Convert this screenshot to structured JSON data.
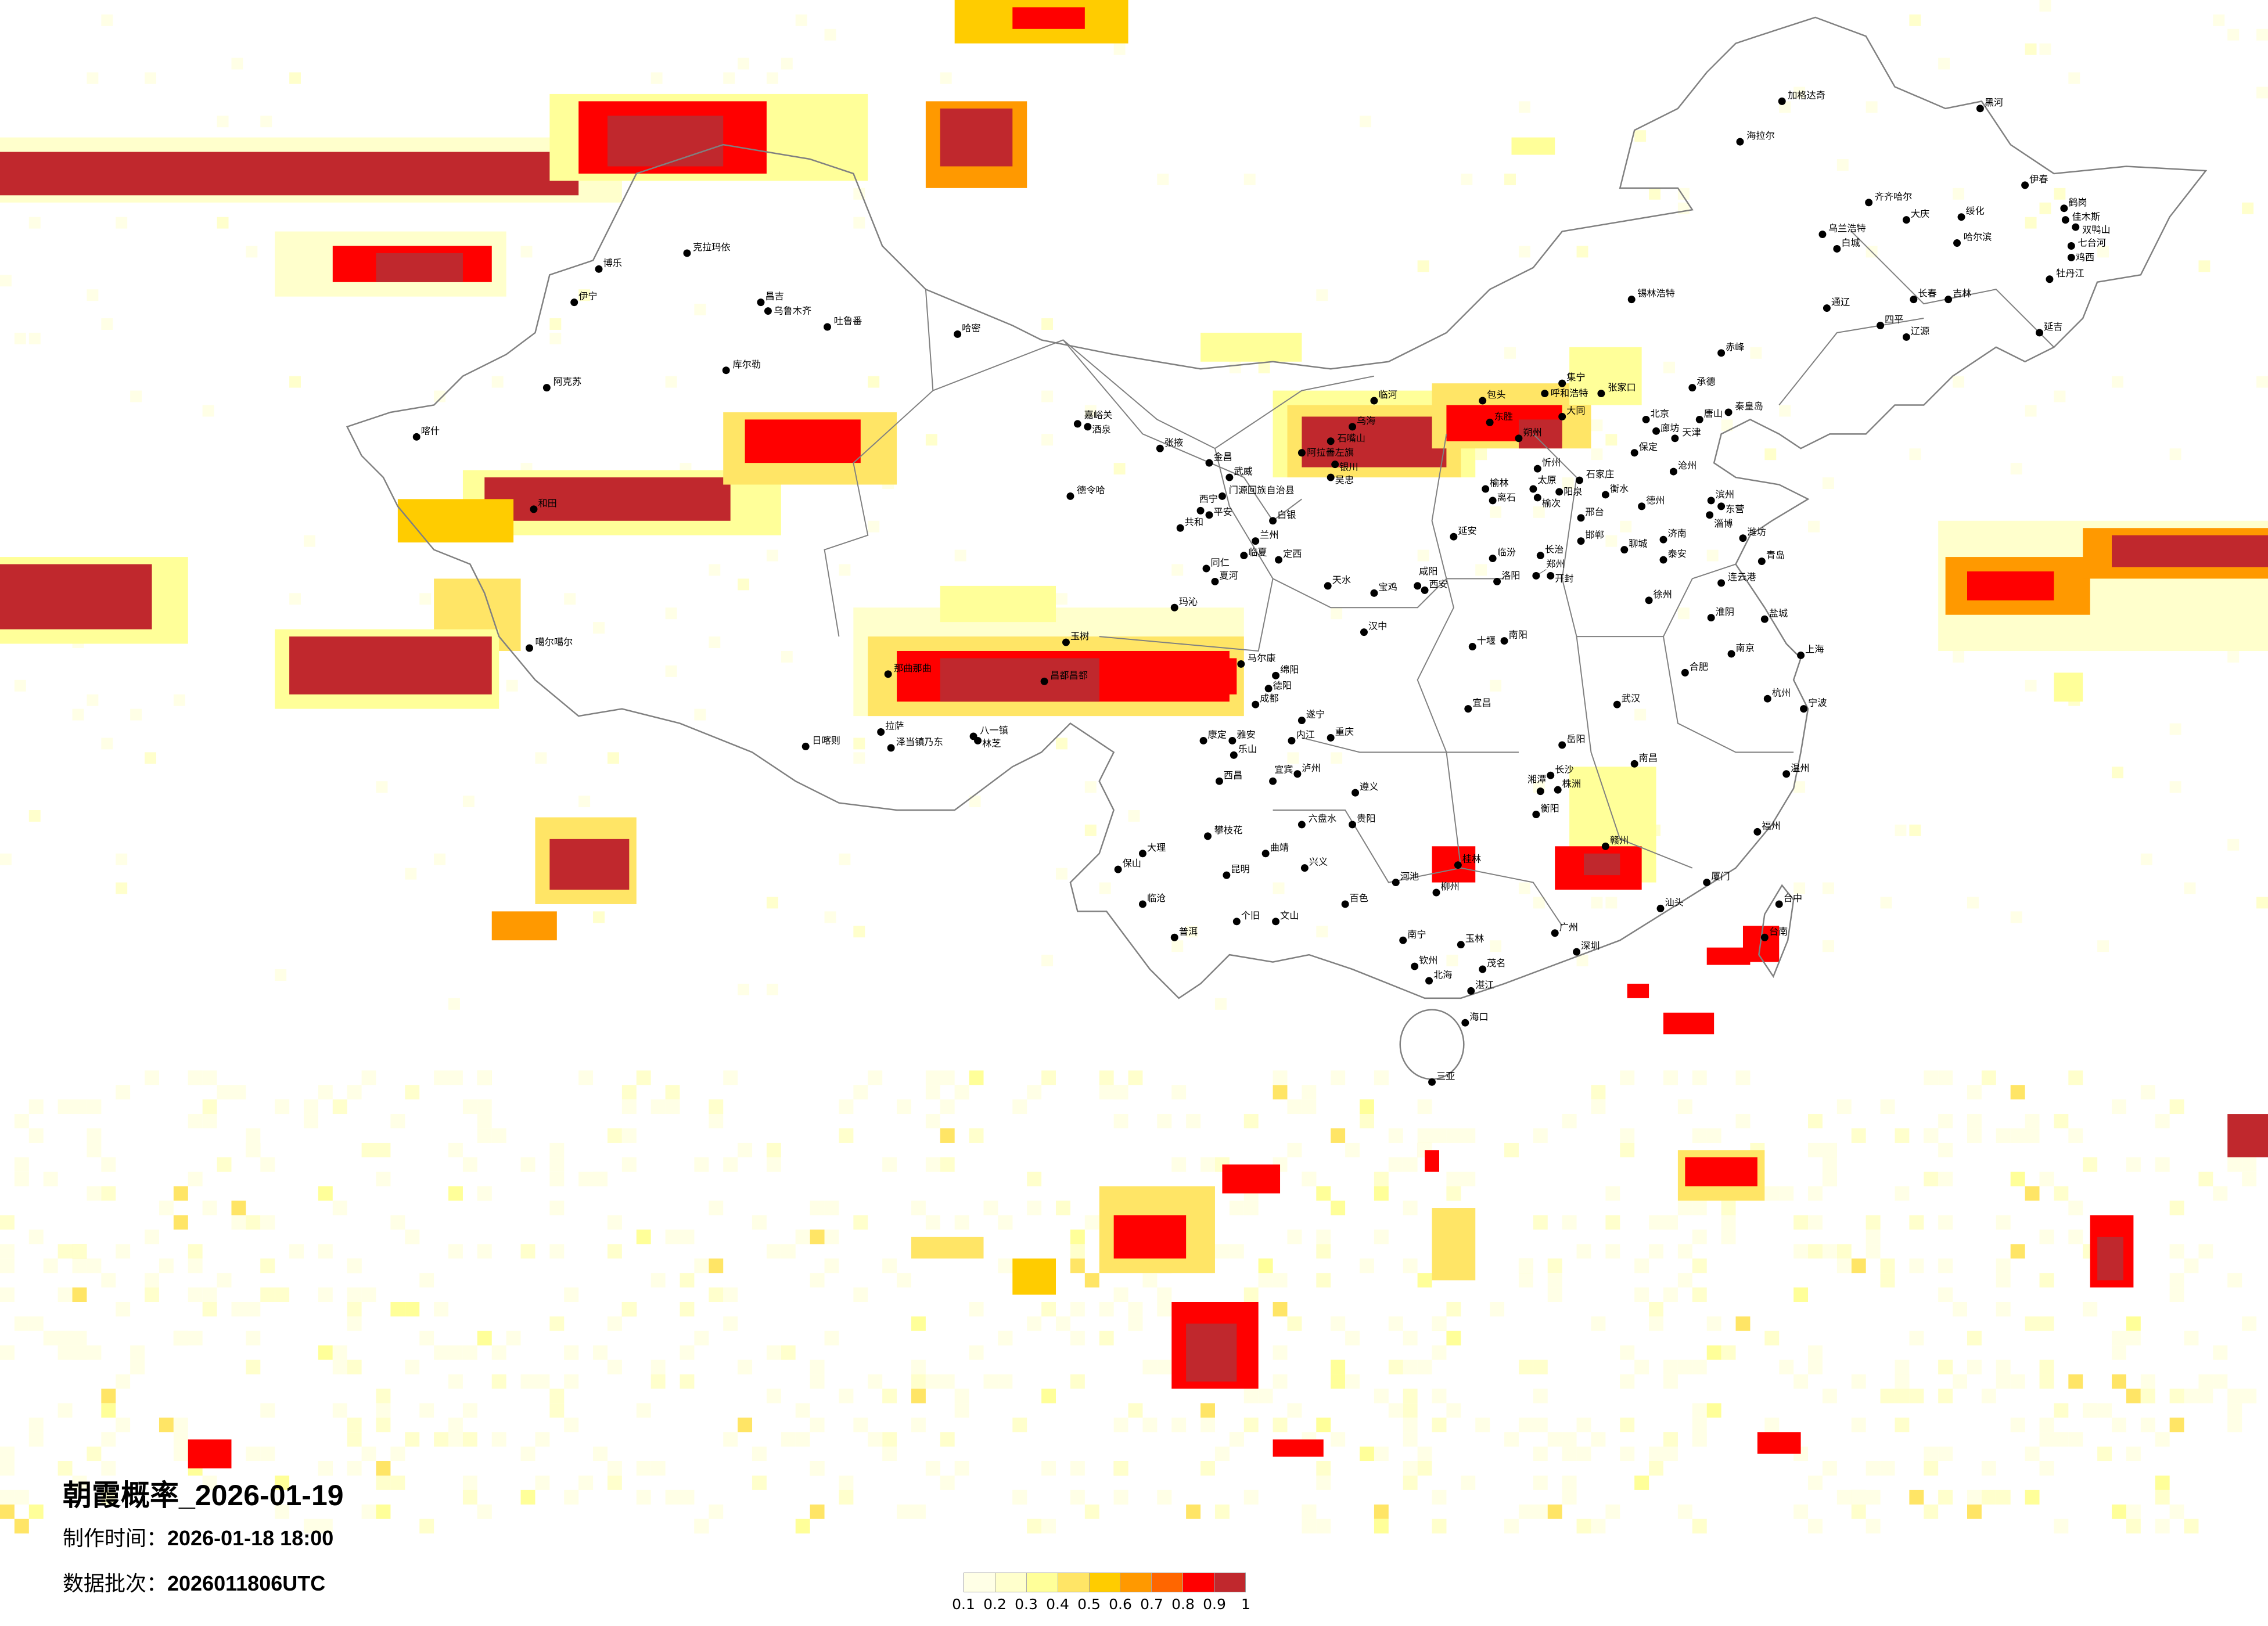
{
  "title": "朝霞概率_2026-01-19",
  "made_time": {
    "label": "制作时间：",
    "value": "2026-01-18 18:00"
  },
  "data_batch": {
    "label": "数据批次：",
    "value": "2026011806UTC"
  },
  "legend": {
    "colors": [
      "#FFFFE6",
      "#FFFFCC",
      "#FFFF99",
      "#FFE566",
      "#FFCC00",
      "#FF9900",
      "#FF6600",
      "#FF0000",
      "#C0282D"
    ],
    "labels": [
      "0.1",
      "0.2",
      "0.3",
      "0.4",
      "0.5",
      "0.6",
      "0.7",
      "0.8",
      "0.9",
      "1"
    ]
  },
  "map_colors": {
    "border": "#808080",
    "city_dot": "#000000"
  },
  "cities": [
    "加格达奇",
    "黑河",
    "海拉尔",
    "齐齐哈尔",
    "大庆",
    "绥化",
    "伊春",
    "鹤岗",
    "佳木斯",
    "双鸭山",
    "七台河",
    "鸡西",
    "哈尔滨",
    "乌兰浩特",
    "白城",
    "牡丹江",
    "长春",
    "吉林",
    "通辽",
    "四平",
    "辽源",
    "延吉",
    "锡林浩特",
    "赤峰",
    "承德",
    "秦皇岛",
    "唐山",
    "北京",
    "廊坊",
    "天津",
    "保定",
    "张家口",
    "集宁",
    "呼和浩特",
    "包头",
    "临河",
    "东胜",
    "大同",
    "朔州",
    "乌海",
    "石嘴山",
    "阿拉善左旗",
    "银川",
    "吴忠",
    "榆林",
    "忻州",
    "太原",
    "榆次",
    "阳泉",
    "石家庄",
    "沧州",
    "衡水",
    "德州",
    "邢台",
    "邯郸",
    "济南",
    "聊城",
    "泰安",
    "滨州",
    "东营",
    "淄博",
    "潍坊",
    "青岛",
    "离石",
    "延安",
    "临汾",
    "长治",
    "克拉玛依",
    "博乐",
    "伊宁",
    "昌吉",
    "乌鲁木齐",
    "吐鲁番",
    "哈密",
    "库尔勒",
    "阿克苏",
    "喀什",
    "和田",
    "噶尔噶尔",
    "嘉峪关",
    "酒泉",
    "张掖",
    "金昌",
    "武威",
    "门源回族自治县",
    "德令哈",
    "西宁",
    "平安",
    "共和",
    "白银",
    "兰州",
    "临夏",
    "同仁",
    "夏河",
    "定西",
    "玛沁",
    "天水",
    "玉树",
    "马尔康",
    "那曲那曲",
    "昌都昌都",
    "日喀则",
    "拉萨",
    "泽当镇乃东",
    "八一镇",
    "林芝",
    "绵阳",
    "德阳",
    "成都",
    "康定",
    "雅安",
    "乐山",
    "内江",
    "遂宁",
    "宜宾",
    "泸州",
    "重庆",
    "贵阳",
    "遵义",
    "昆明",
    "大理",
    "西昌",
    "攀枝花",
    "保山",
    "临沧",
    "普洱",
    "个旧",
    "文山",
    "曲靖",
    "六盘水",
    "兴义",
    "百色",
    "南宁",
    "河池",
    "柳州",
    "桂林",
    "玉林",
    "钦州",
    "北海",
    "湛江",
    "茂名",
    "海口",
    "三亚",
    "长沙",
    "株洲",
    "湘潭",
    "衡阳",
    "岳阳",
    "武汉",
    "南昌",
    "合肥",
    "南京",
    "上海",
    "杭州",
    "宁波",
    "温州",
    "福州",
    "厦门",
    "广州",
    "深圳",
    "汕头",
    "赣州",
    "台中",
    "台南",
    "郑州",
    "开封",
    "洛阳",
    "西安",
    "咸阳",
    "宝鸡",
    "汉中",
    "十堰",
    "南阳",
    "宜昌",
    "连云港",
    "淮阴",
    "盐城",
    "徐州"
  ]
}
